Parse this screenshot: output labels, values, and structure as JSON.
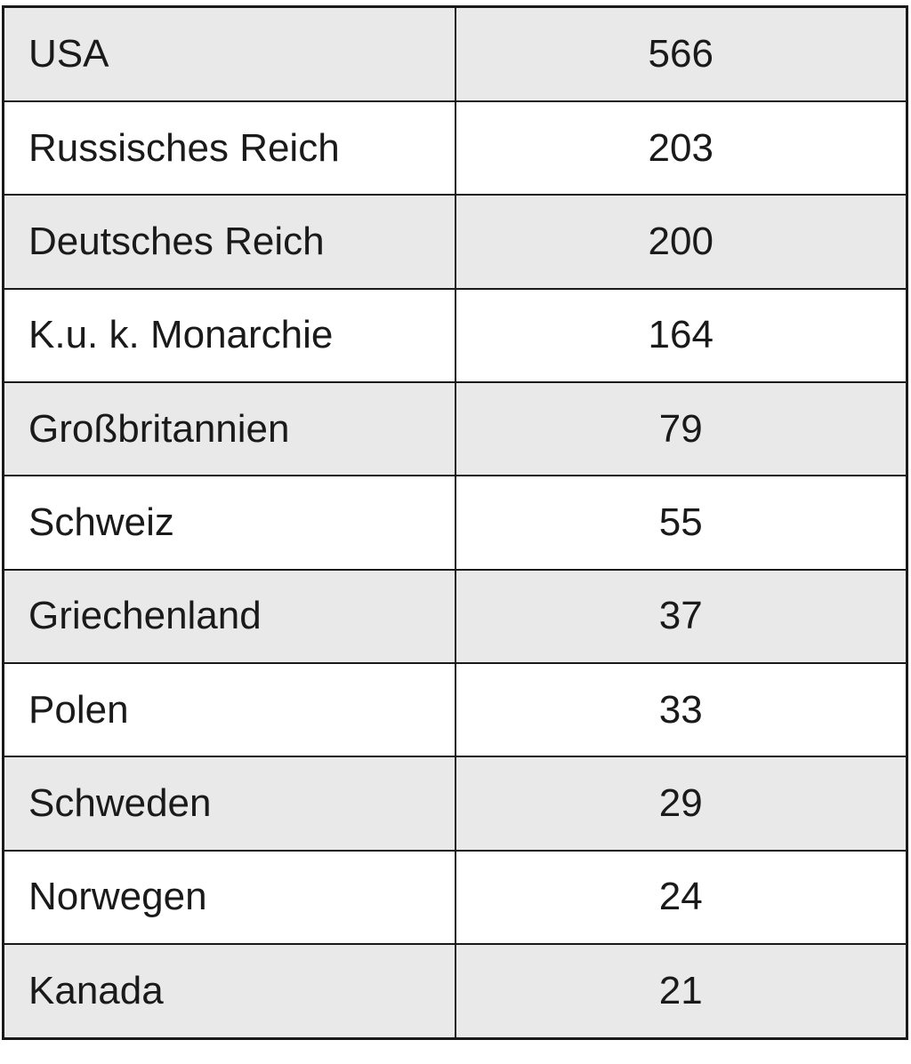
{
  "chart_data": {
    "type": "table",
    "categories": [
      "USA",
      "Russisches Reich",
      "Deutsches Reich",
      "K.u. k. Monarchie",
      "Großbritannien",
      "Schweiz",
      "Griechenland",
      "Polen",
      "Schweden",
      "Norwegen",
      "Kanada"
    ],
    "values": [
      566,
      203,
      200,
      164,
      79,
      55,
      37,
      33,
      29,
      24,
      21
    ],
    "title": "",
    "xlabel": "",
    "ylabel": "",
    "legend": "none",
    "layout": "two-column table, labels left-aligned, values centered, alternating shaded rows starting with shaded first row"
  },
  "table": {
    "rows": [
      {
        "label": "USA",
        "value": "566"
      },
      {
        "label": "Russisches Reich",
        "value": "203"
      },
      {
        "label": "Deutsches Reich",
        "value": "200"
      },
      {
        "label": "K.u. k. Monarchie",
        "value": "164"
      },
      {
        "label": "Großbritannien",
        "value": "79"
      },
      {
        "label": "Schweiz",
        "value": "55"
      },
      {
        "label": "Griechenland",
        "value": "37"
      },
      {
        "label": "Polen",
        "value": "33"
      },
      {
        "label": "Schweden",
        "value": "29"
      },
      {
        "label": "Norwegen",
        "value": "24"
      },
      {
        "label": "Kanada",
        "value": "21"
      }
    ]
  },
  "colors": {
    "row_shaded": "#e9e9e9",
    "row_plain": "#ffffff",
    "border": "#1a1a1a",
    "text": "#1a1a1a",
    "page_background": "#ffffff"
  }
}
